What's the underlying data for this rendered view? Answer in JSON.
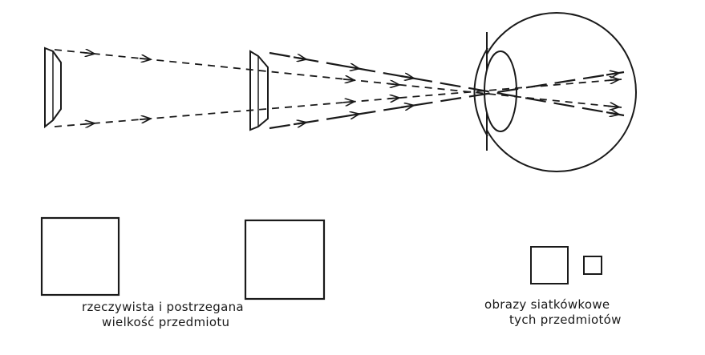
{
  "captions": {
    "left_line1": "rzeczywista i postrzegana",
    "left_line2": "wielkość przedmiotu",
    "right_line1": "obrazy siatkówkowe",
    "right_line2": "tych przedmiotów"
  },
  "colors": {
    "ink": "#1a1a1a",
    "background": "#ffffff"
  }
}
